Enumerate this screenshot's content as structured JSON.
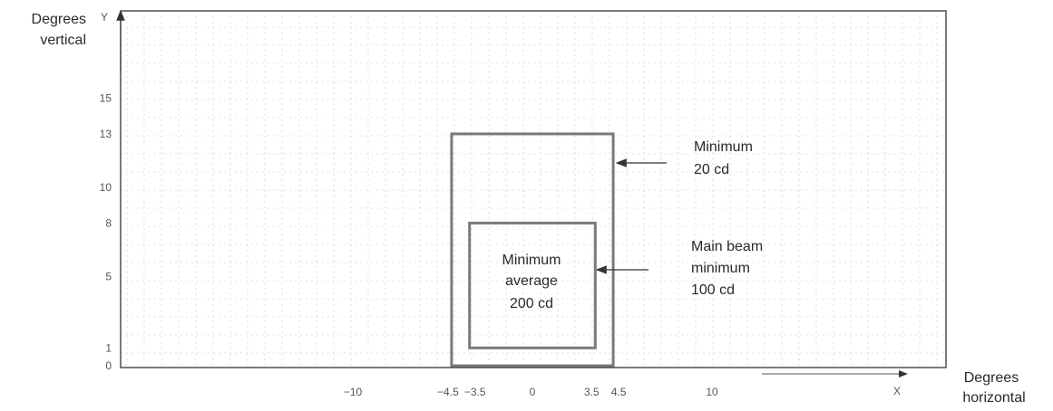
{
  "axes": {
    "y_title_line1": "Degrees",
    "y_title_line2": "vertical",
    "y_letter": "Y",
    "x_title_line1": "Degrees",
    "x_title_line2": "horizontal",
    "x_letter": "X"
  },
  "x_ticks": [
    {
      "value": -10,
      "label": "−10"
    },
    {
      "value": -4.5,
      "label": "−4.5"
    },
    {
      "value": -3.5,
      "label": "−3.5"
    },
    {
      "value": 0,
      "label": "0"
    },
    {
      "value": 3.5,
      "label": "3.5"
    },
    {
      "value": 4.5,
      "label": "4.5"
    },
    {
      "value": 10,
      "label": "10"
    }
  ],
  "y_ticks": [
    {
      "value": 0,
      "label": "0"
    },
    {
      "value": 1,
      "label": "1"
    },
    {
      "value": 5,
      "label": "5"
    },
    {
      "value": 8,
      "label": "8"
    },
    {
      "value": 10,
      "label": "10"
    },
    {
      "value": 13,
      "label": "13"
    },
    {
      "value": 15,
      "label": "15"
    }
  ],
  "regions": {
    "outer": {
      "x_min": -4.5,
      "x_max": 4.5,
      "y_min": 0,
      "y_max": 13
    },
    "inner": {
      "x_min": -3.5,
      "x_max": 3.5,
      "y_min": 1,
      "y_max": 8
    }
  },
  "labels": {
    "inner_line1": "Minimum",
    "inner_line2": "average",
    "inner_line3": "200 cd",
    "outer_callout_line1": "Minimum",
    "outer_callout_line2": "20 cd",
    "main_callout_line1": "Main beam",
    "main_callout_line2": "minimum",
    "main_callout_line3": "100 cd"
  },
  "colors": {
    "frame": "#333333",
    "grid": "#c8c8c8",
    "box": "#7a7a7a"
  }
}
